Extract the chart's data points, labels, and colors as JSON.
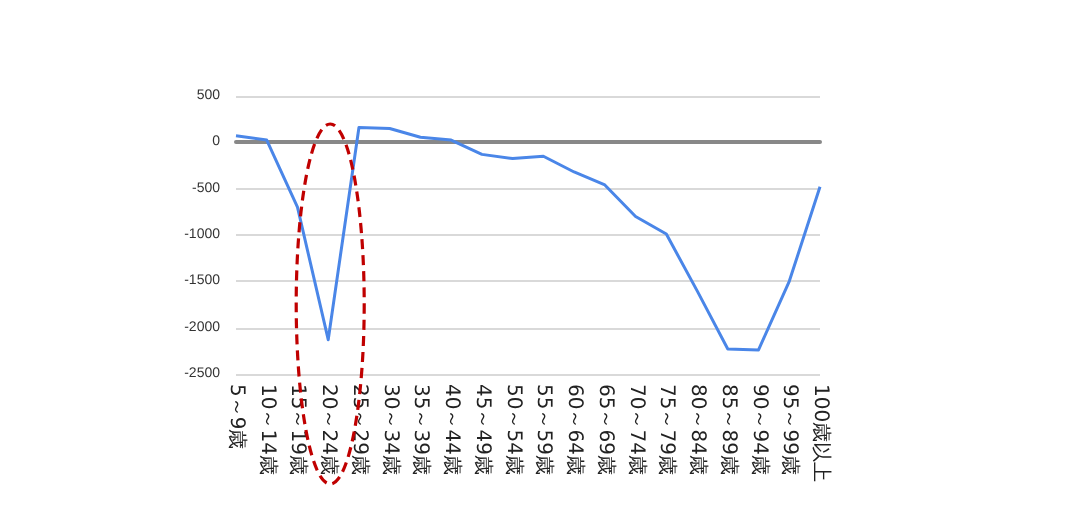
{
  "chart_data": {
    "type": "line",
    "categories": [
      "5～9歳",
      "10～14歳",
      "15～19歳",
      "20～24歳",
      "25～29歳",
      "30～34歳",
      "35～39歳",
      "40～44歳",
      "45～49歳",
      "50～54歳",
      "55～59歳",
      "60～64歳",
      "65～69歳",
      "70～74歳",
      "75～79歳",
      "80～84歳",
      "85～89歳",
      "90～94歳",
      "95～99歳",
      "100歳以上"
    ],
    "series": [
      {
        "color": "#4a86e8",
        "values": [
          70,
          25,
          -700,
          -2130,
          160,
          150,
          55,
          25,
          -130,
          -175,
          -150,
          -320,
          -460,
          -800,
          -990,
          -1600,
          -2230,
          -2240,
          -1500,
          -480
        ]
      }
    ],
    "ylim": [
      -2500,
      500
    ],
    "yticks": [
      -2500,
      -2000,
      -1500,
      -1000,
      -500,
      0,
      500
    ],
    "grid": "y",
    "marker": "none",
    "line_style": "solid"
  }
}
